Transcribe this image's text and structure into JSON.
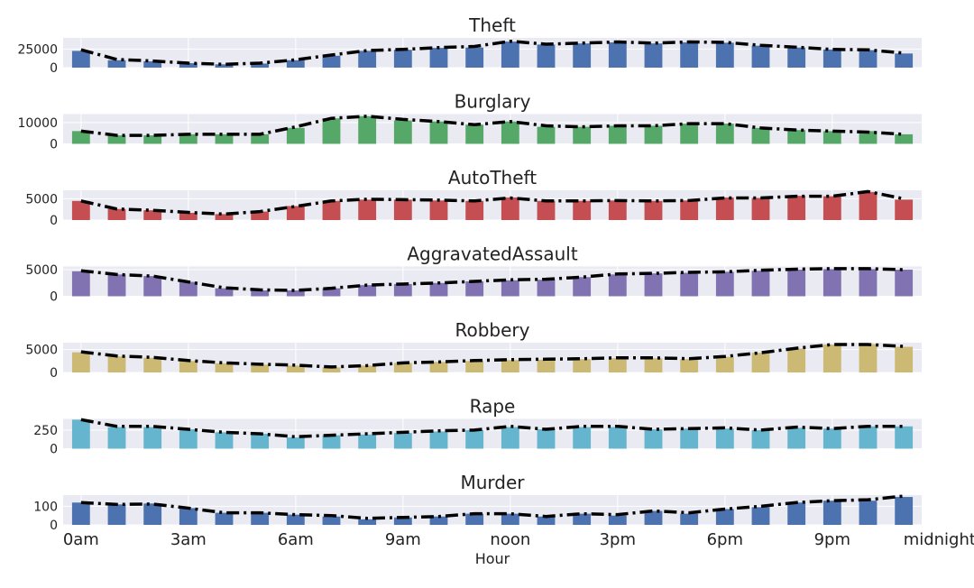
{
  "chart_data": {
    "type": "bar",
    "xlabel": "Hour",
    "x": [
      0,
      1,
      2,
      3,
      4,
      5,
      6,
      7,
      8,
      9,
      10,
      11,
      12,
      13,
      14,
      15,
      16,
      17,
      18,
      19,
      20,
      21,
      22,
      23
    ],
    "xtick_labels": [
      "0am",
      "3am",
      "6am",
      "9am",
      "noon",
      "3pm",
      "6pm",
      "9pm",
      "midnight"
    ],
    "grid": true,
    "line_style": "black dash-dot rolling average",
    "panels": [
      {
        "title": "Theft",
        "color": "#4c72b0",
        "yticks": [
          0,
          25000
        ],
        "ylim": [
          0,
          40000
        ],
        "values": [
          22500,
          10000,
          8500,
          6000,
          4500,
          5500,
          10000,
          16000,
          22500,
          24000,
          26500,
          27000,
          35000,
          31000,
          32500,
          34000,
          32500,
          34000,
          33500,
          29500,
          27000,
          24500,
          23500,
          19000
        ],
        "line": [
          24000,
          11000,
          9000,
          6000,
          4500,
          6000,
          10500,
          17000,
          23000,
          24500,
          27000,
          28500,
          35500,
          31500,
          33000,
          34500,
          33000,
          34500,
          34000,
          30000,
          27500,
          24500,
          24000,
          19500
        ]
      },
      {
        "title": "Burglary",
        "color": "#55a868",
        "yticks": [
          0,
          10000
        ],
        "ylim": [
          0,
          14000
        ],
        "values": [
          6000,
          4000,
          4000,
          4500,
          4500,
          4500,
          7500,
          12000,
          13000,
          11000,
          10500,
          9000,
          10500,
          8000,
          8000,
          8500,
          8500,
          9500,
          9500,
          7500,
          6500,
          6000,
          6000,
          4500
        ],
        "line": [
          6000,
          4000,
          4000,
          4500,
          4500,
          4500,
          8000,
          12000,
          13000,
          11500,
          10500,
          9000,
          10500,
          8500,
          8000,
          8500,
          8500,
          9500,
          9500,
          7500,
          6500,
          6000,
          5500,
          4500
        ]
      },
      {
        "title": "AutoTheft",
        "color": "#c44e52",
        "yticks": [
          0,
          5000
        ],
        "ylim": [
          0,
          7000
        ],
        "values": [
          4500,
          2600,
          2300,
          1700,
          1400,
          2000,
          3300,
          4500,
          4800,
          4800,
          4600,
          4500,
          5300,
          4500,
          4500,
          4600,
          4500,
          4600,
          5300,
          5200,
          5700,
          5600,
          6600,
          4800
        ],
        "line": [
          4500,
          2600,
          2300,
          1800,
          1400,
          2000,
          3200,
          4500,
          4900,
          4800,
          4700,
          4500,
          5200,
          4500,
          4500,
          4600,
          4500,
          4600,
          5200,
          5200,
          5600,
          5600,
          6700,
          5000
        ]
      },
      {
        "title": "AggravatedAssault",
        "color": "#8172b2",
        "yticks": [
          0,
          5000
        ],
        "ylim": [
          0,
          5600
        ],
        "values": [
          4700,
          4100,
          3800,
          2700,
          1500,
          1100,
          1100,
          1500,
          2100,
          2300,
          2500,
          2800,
          3000,
          3100,
          3600,
          4100,
          4300,
          4400,
          4600,
          4800,
          5000,
          5100,
          5100,
          5000
        ],
        "line": [
          4800,
          4100,
          3800,
          2700,
          1600,
          1200,
          1100,
          1500,
          2100,
          2300,
          2500,
          2800,
          3100,
          3200,
          3600,
          4200,
          4300,
          4500,
          4600,
          4900,
          5100,
          5200,
          5200,
          5000
        ]
      },
      {
        "title": "Robbery",
        "color": "#ccb974",
        "yticks": [
          0,
          5000
        ],
        "ylim": [
          0,
          6500
        ],
        "values": [
          4400,
          3500,
          3200,
          2500,
          2000,
          1700,
          1500,
          1100,
          1500,
          2100,
          2300,
          2500,
          2700,
          2800,
          2900,
          3100,
          3100,
          2900,
          3400,
          4300,
          5200,
          6100,
          6200,
          5600
        ],
        "line": [
          4500,
          3600,
          3300,
          2600,
          2100,
          1800,
          1600,
          1200,
          1500,
          2100,
          2300,
          2600,
          2800,
          2900,
          3000,
          3200,
          3200,
          3000,
          3500,
          4300,
          5300,
          6100,
          6100,
          5700
        ]
      },
      {
        "title": "Rape",
        "color": "#64b5cd",
        "yticks": [
          0,
          250
        ],
        "ylim": [
          0,
          400
        ],
        "values": [
          390,
          290,
          290,
          260,
          220,
          200,
          150,
          180,
          190,
          210,
          230,
          250,
          290,
          260,
          290,
          290,
          260,
          270,
          270,
          250,
          280,
          270,
          300,
          300
        ],
        "line": [
          390,
          300,
          300,
          260,
          220,
          200,
          160,
          180,
          200,
          220,
          240,
          250,
          300,
          260,
          300,
          300,
          260,
          270,
          280,
          250,
          290,
          270,
          300,
          300
        ]
      },
      {
        "title": "Murder",
        "color": "#4c72b0",
        "yticks": [
          0,
          100
        ],
        "ylim": [
          0,
          160
        ],
        "values": [
          120,
          110,
          115,
          90,
          65,
          65,
          55,
          45,
          30,
          40,
          45,
          60,
          60,
          45,
          60,
          50,
          75,
          60,
          85,
          95,
          120,
          130,
          130,
          150
        ],
        "line": [
          120,
          110,
          112,
          90,
          65,
          65,
          55,
          50,
          35,
          40,
          45,
          60,
          60,
          45,
          60,
          55,
          75,
          65,
          85,
          100,
          120,
          130,
          135,
          155
        ]
      }
    ]
  }
}
